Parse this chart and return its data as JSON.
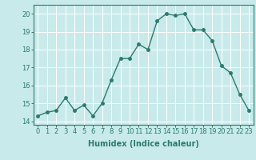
{
  "x": [
    0,
    1,
    2,
    3,
    4,
    5,
    6,
    7,
    8,
    9,
    10,
    11,
    12,
    13,
    14,
    15,
    16,
    17,
    18,
    19,
    20,
    21,
    22,
    23
  ],
  "y": [
    14.3,
    14.5,
    14.6,
    15.3,
    14.6,
    14.9,
    14.3,
    15.0,
    16.3,
    17.5,
    17.5,
    18.3,
    18.0,
    19.6,
    20.0,
    19.9,
    20.0,
    19.1,
    19.1,
    18.5,
    17.1,
    16.7,
    15.5,
    14.6
  ],
  "line_color": "#2d7a6e",
  "marker": "o",
  "markersize": 2.5,
  "linewidth": 1.0,
  "bg_color": "#c8eaea",
  "grid_color": "#ffffff",
  "xlabel": "Humidex (Indice chaleur)",
  "xlabel_fontsize": 7,
  "tick_fontsize": 6,
  "xlim": [
    -0.5,
    23.5
  ],
  "ylim": [
    13.8,
    20.5
  ],
  "yticks": [
    14,
    15,
    16,
    17,
    18,
    19,
    20
  ],
  "xticks": [
    0,
    1,
    2,
    3,
    4,
    5,
    6,
    7,
    8,
    9,
    10,
    11,
    12,
    13,
    14,
    15,
    16,
    17,
    18,
    19,
    20,
    21,
    22,
    23
  ]
}
